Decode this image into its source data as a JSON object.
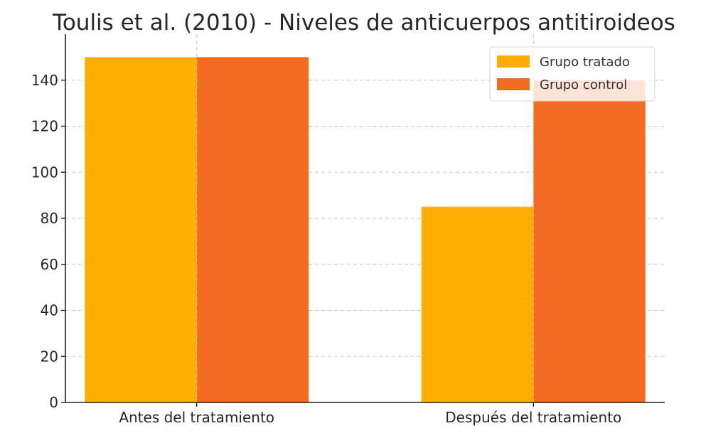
{
  "chart_data": {
    "type": "bar",
    "title": "Toulis et al. (2010) - Niveles de anticuerpos antitiroideos",
    "xlabel": "",
    "ylabel": "",
    "categories": [
      "Antes del tratamiento",
      "Después del tratamiento"
    ],
    "series": [
      {
        "name": "Grupo tratado",
        "values": [
          150,
          85
        ],
        "color": "#FFAE00"
      },
      {
        "name": "Grupo control",
        "values": [
          150,
          140
        ],
        "color": "#F26B21"
      }
    ],
    "ylim": [
      0,
      160
    ],
    "yticks": [
      0,
      20,
      40,
      60,
      80,
      100,
      120,
      140
    ],
    "grid": true,
    "legend_position": "top-right"
  }
}
